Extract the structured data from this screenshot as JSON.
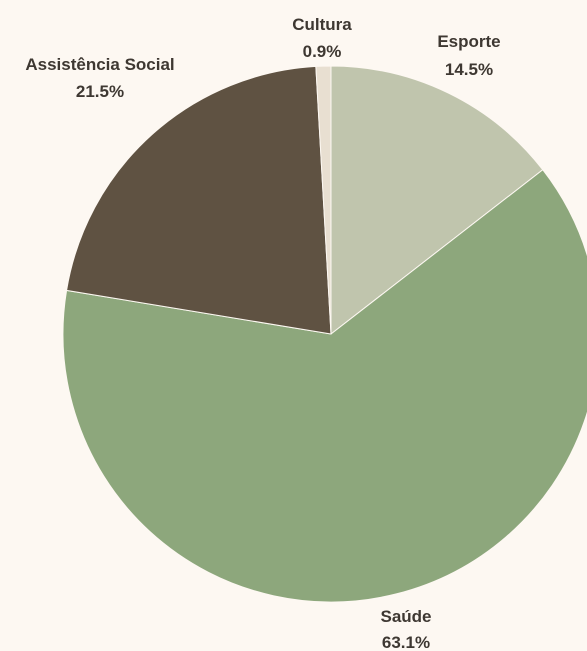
{
  "chart_data": {
    "type": "pie",
    "title": "",
    "start_angle_deg": 0,
    "direction": "clockwise",
    "slices": [
      {
        "label": "Esporte",
        "value": 14.5,
        "display": "14.5%",
        "color": "#c0c5ad"
      },
      {
        "label": "Saúde",
        "value": 63.1,
        "display": "63.1%",
        "color": "#8da77c"
      },
      {
        "label": "Assistência Social",
        "value": 21.5,
        "display": "21.5%",
        "color": "#5f5242"
      },
      {
        "label": "Cultura",
        "value": 0.9,
        "display": "0.9%",
        "color": "#e8dfd1"
      }
    ]
  }
}
